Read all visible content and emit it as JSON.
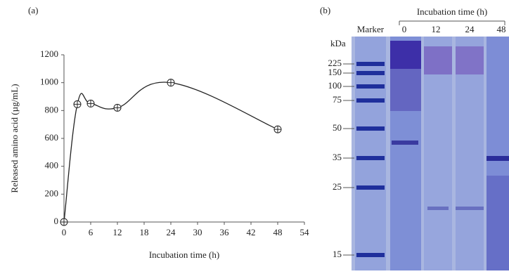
{
  "chart_data": {
    "type": "line",
    "panel_label": "(a)",
    "x_label": "Incubation time (h)",
    "y_label": "Released amino acid (µg/mL)",
    "x": [
      0,
      3,
      6,
      12,
      24,
      48
    ],
    "values": [
      0,
      845,
      850,
      820,
      1000,
      665
    ],
    "color": "#222222",
    "xlim": [
      0,
      54
    ],
    "xticks": [
      0,
      6,
      12,
      18,
      24,
      30,
      36,
      42,
      48,
      54
    ],
    "ylim": [
      0,
      1200
    ],
    "yticks": [
      0,
      200,
      400,
      600,
      800,
      1000,
      1200
    ],
    "grid": false
  },
  "gel": {
    "panel_label": "(b)",
    "header": "Incubation time (h)",
    "marker_label": "Marker",
    "lanes": [
      "0",
      "12",
      "24",
      "48"
    ],
    "unit": "kDa",
    "marker_kda": [
      225,
      150,
      100,
      75,
      50,
      35,
      25,
      15
    ]
  }
}
